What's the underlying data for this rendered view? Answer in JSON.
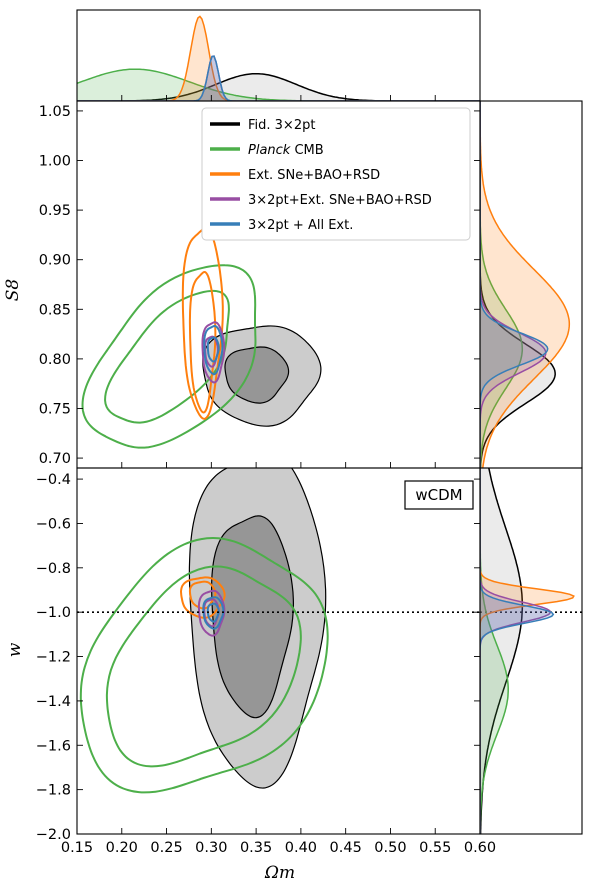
{
  "chart_data": {
    "type": "contour",
    "xlabel": "Ωm",
    "ylabel_top": "S8",
    "ylabel_bottom": "w",
    "xlim": [
      0.15,
      0.6
    ],
    "ylim_top": [
      0.69,
      1.06
    ],
    "ylim_bottom": [
      -2.0,
      -0.35
    ],
    "x_ticks": [
      "0.15",
      "0.20",
      "0.25",
      "0.30",
      "0.35",
      "0.40",
      "0.45",
      "0.50",
      "0.55",
      "0.60"
    ],
    "y_ticks_top": [
      "0.70",
      "0.75",
      "0.80",
      "0.85",
      "0.90",
      "0.95",
      "1.00",
      "1.05"
    ],
    "y_ticks_bottom": [
      "−2.0",
      "−1.8",
      "−1.6",
      "−1.4",
      "−1.2",
      "−1.0",
      "−0.8",
      "−0.6",
      "−0.4"
    ],
    "annotation": "wCDM",
    "reference_line_w": -1.0,
    "legend_placement": "top-center",
    "series": [
      {
        "key": "fid",
        "name": "Fid. 3×2pt",
        "color": "#000000",
        "filled": true,
        "omega_m_peak": 0.35,
        "s8_peak": 0.785,
        "w_peak": -0.98,
        "contours_s8": [
          {
            "center": [
              0.35,
              0.785
            ],
            "radii": [
              0.035,
              0.028
            ]
          },
          {
            "center": [
              0.355,
              0.785
            ],
            "radii": [
              0.065,
              0.05
            ]
          }
        ],
        "contours_w": [
          {
            "center": [
              0.345,
              -1.0
            ],
            "radii": [
              0.045,
              0.45
            ]
          },
          {
            "center": [
              0.35,
              -1.0
            ],
            "radii": [
              0.075,
              0.75
            ]
          }
        ]
      },
      {
        "key": "planck",
        "name": "Planck CMB",
        "name_italic": "Planck",
        "name_rest": " CMB",
        "color": "#4daf4a",
        "filled": false,
        "omega_m_peak": 0.21,
        "s8_peak": 0.8,
        "w_peak": -1.35,
        "contours_s8": [
          {
            "center": [
              0.255,
              0.8
            ],
            "radii": [
              0.09,
              0.04
            ],
            "tilt": 0.28
          },
          {
            "center": [
              0.26,
              0.8
            ],
            "radii": [
              0.12,
              0.065
            ],
            "tilt": 0.28
          }
        ],
        "contours_w": [
          {
            "center": [
              0.29,
              -1.25
            ],
            "radii": [
              0.09,
              0.5
            ],
            "tilt": -0.25
          },
          {
            "center": [
              0.29,
              -1.25
            ],
            "radii": [
              0.12,
              0.62
            ],
            "tilt": -0.25
          }
        ]
      },
      {
        "key": "ext",
        "name": "Ext. SNe+BAO+RSD",
        "color": "#ff7f0e",
        "filled": false,
        "omega_m_peak": 0.29,
        "s8_peak": 0.84,
        "w_peak": -0.93,
        "contours_s8": [
          {
            "center": [
              0.29,
              0.82
            ],
            "radii": [
              0.014,
              0.07
            ]
          },
          {
            "center": [
              0.29,
              0.84
            ],
            "radii": [
              0.022,
              0.095
            ]
          }
        ],
        "contours_w": [
          {
            "center": [
              0.29,
              -0.92
            ],
            "radii": [
              0.014,
              0.06
            ]
          },
          {
            "center": [
              0.29,
              -0.93
            ],
            "radii": [
              0.024,
              0.09
            ]
          }
        ]
      },
      {
        "key": "combo",
        "name": "3×2pt+Ext. SNe+BAO+RSD",
        "color": "#984ea3",
        "filled": false,
        "omega_m_peak": 0.3,
        "s8_peak": 0.805,
        "w_peak": -1.0,
        "contours_s8": [
          {
            "center": [
              0.3,
              0.808
            ],
            "radii": [
              0.007,
              0.015
            ]
          },
          {
            "center": [
              0.302,
              0.808
            ],
            "radii": [
              0.012,
              0.03
            ]
          }
        ],
        "contours_w": [
          {
            "center": [
              0.3,
              -1.0
            ],
            "radii": [
              0.008,
              0.06
            ]
          },
          {
            "center": [
              0.3,
              -1.0
            ],
            "radii": [
              0.014,
              0.1
            ]
          }
        ]
      },
      {
        "key": "all",
        "name": "3×2pt + All Ext.",
        "color": "#377eb8",
        "filled": false,
        "omega_m_peak": 0.302,
        "s8_peak": 0.81,
        "w_peak": -1.02,
        "contours_s8": [
          {
            "center": [
              0.302,
              0.81
            ],
            "radii": [
              0.006,
              0.012
            ]
          },
          {
            "center": [
              0.302,
              0.81
            ],
            "radii": [
              0.01,
              0.024
            ]
          }
        ],
        "contours_w": [
          {
            "center": [
              0.302,
              -1.0
            ],
            "radii": [
              0.006,
              0.04
            ]
          },
          {
            "center": [
              0.302,
              -1.0
            ],
            "radii": [
              0.011,
              0.07
            ]
          }
        ]
      }
    ],
    "marginals": {
      "omega_m": [
        {
          "key": "fid",
          "peak": 0.35,
          "width": 0.045,
          "height": 0.3
        },
        {
          "key": "planck",
          "peak": 0.215,
          "width": 0.06,
          "height": 0.35
        },
        {
          "key": "ext",
          "peak": 0.287,
          "width": 0.01,
          "height": 0.93
        },
        {
          "key": "combo",
          "peak": 0.302,
          "width": 0.006,
          "height": 0.5
        },
        {
          "key": "all",
          "peak": 0.302,
          "width": 0.006,
          "height": 0.5
        }
      ],
      "s8": [
        {
          "key": "fid",
          "peak": 0.785,
          "width": 0.03,
          "height": 0.8
        },
        {
          "key": "planck",
          "peak": 0.81,
          "width": 0.04,
          "height": 0.45
        },
        {
          "key": "ext",
          "peak": 0.835,
          "width": 0.055,
          "height": 0.95
        },
        {
          "key": "combo",
          "peak": 0.806,
          "width": 0.02,
          "height": 0.7
        },
        {
          "key": "all",
          "peak": 0.81,
          "width": 0.016,
          "height": 0.72
        }
      ],
      "w": [
        {
          "key": "fid",
          "peak": -0.97,
          "width": 0.35,
          "height": 0.45
        },
        {
          "key": "planck",
          "peak": -1.35,
          "width": 0.2,
          "height": 0.3
        },
        {
          "key": "ext",
          "peak": -0.93,
          "width": 0.035,
          "height": 1.0
        },
        {
          "key": "combo",
          "peak": -1.0,
          "width": 0.045,
          "height": 0.75
        },
        {
          "key": "all",
          "peak": -1.01,
          "width": 0.04,
          "height": 0.78
        }
      ]
    }
  }
}
